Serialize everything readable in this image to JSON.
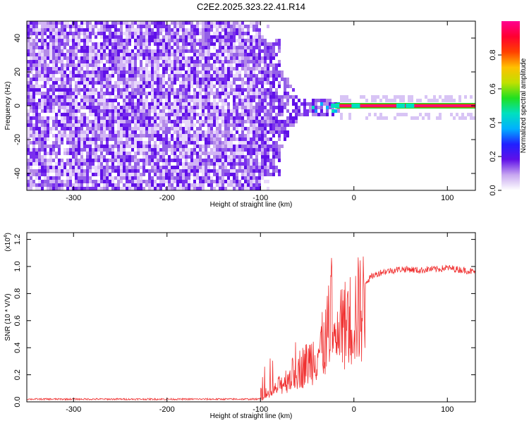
{
  "title": "C2E2.2025.323.22.41.R14",
  "chart_data": [
    {
      "type": "heatmap",
      "name": "spectrogram",
      "xlabel": "Height of straight line (km)",
      "ylabel": "Frequency (Hz)",
      "xlim": [
        -350,
        130
      ],
      "ylim": [
        -50,
        50
      ],
      "xticks": [
        -300,
        -200,
        -100,
        0,
        100
      ],
      "yticks": [
        -40,
        -20,
        0,
        20,
        40
      ],
      "colorbar": {
        "label": "Normalized spectral amplitude",
        "range": [
          0.0,
          1.0
        ],
        "ticks": [
          0.0,
          0.2,
          0.4,
          0.6,
          0.8
        ],
        "tick_labels": [
          "0.0",
          "0.2",
          "0.4",
          "0.6",
          "0.8"
        ],
        "colormap": [
          "#ffffff",
          "#c8a8f0",
          "#6010e8",
          "#2020ff",
          "#00b0ff",
          "#00e0c0",
          "#20e020",
          "#c0e000",
          "#ffc000",
          "#ff4000",
          "#ff0030",
          "#ff0090"
        ]
      },
      "regions": [
        {
          "x_range": [
            -350,
            -100
          ],
          "description_level": 0.15
        },
        {
          "x_range": [
            -100,
            -15
          ],
          "description_level": 0.25
        },
        {
          "x_range": [
            -15,
            130
          ],
          "line_freq": 0,
          "level": 0.9
        }
      ]
    },
    {
      "type": "line",
      "name": "snr",
      "xlabel": "Height of straight line (km)",
      "ylabel": "SNR (10 * V/V)",
      "multiplier_label": "(x10",
      "multiplier_exp": "4",
      "multiplier_close": ")",
      "xlim": [
        -350,
        130
      ],
      "ylim": [
        0,
        1.25
      ],
      "xticks": [
        -300,
        -200,
        -100,
        0,
        100
      ],
      "yticks": [
        0.0,
        0.2,
        0.4,
        0.6,
        0.8,
        1.0,
        1.2
      ],
      "ytick_labels": [
        "0.0",
        "0.2",
        "0.4",
        "0.6",
        "0.8",
        "1.0",
        "1.2"
      ],
      "line_color": "#f03030",
      "x": [
        -350,
        -300,
        -200,
        -100,
        -90,
        -80,
        -70,
        -60,
        -50,
        -40,
        -30,
        -25,
        -20,
        -15,
        -10,
        -5,
        0,
        5,
        10,
        15,
        20,
        30,
        40,
        50,
        60,
        70,
        80,
        90,
        100,
        110,
        120,
        130
      ],
      "y": [
        0.02,
        0.02,
        0.02,
        0.02,
        0.06,
        0.15,
        0.22,
        0.3,
        0.35,
        0.45,
        0.55,
        0.75,
        0.6,
        0.65,
        0.7,
        0.75,
        0.8,
        0.84,
        0.88,
        0.9,
        0.93,
        0.96,
        0.97,
        0.98,
        0.98,
        0.97,
        0.98,
        0.98,
        0.99,
        0.98,
        0.97,
        0.96
      ]
    }
  ]
}
